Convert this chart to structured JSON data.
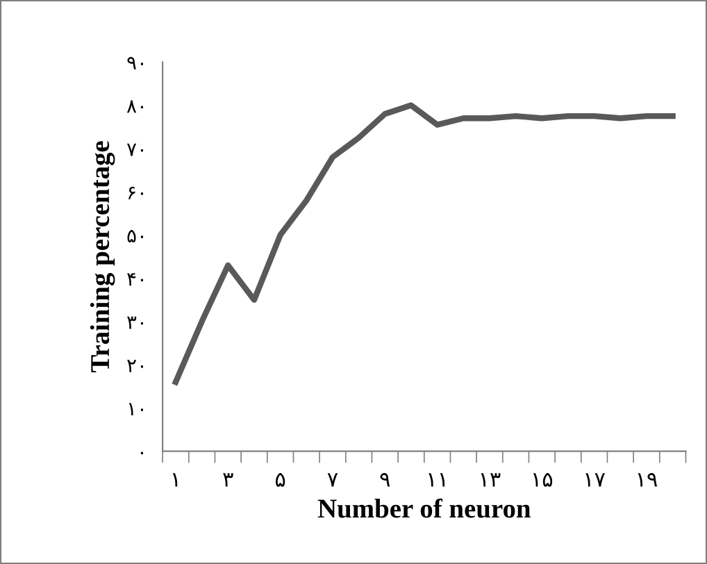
{
  "chart_data": {
    "type": "line",
    "xlabel": "Number of neuron",
    "ylabel": "Training percentage",
    "categories": [
      "۱",
      null,
      "۳",
      null,
      "۵",
      null,
      "۷",
      null,
      "۹",
      null,
      "۱۱",
      null,
      "۱۳",
      null,
      "۱۵",
      null,
      "۱۷",
      null,
      "۱۹",
      null
    ],
    "series": [
      {
        "color": "#595959",
        "values": [
          16,
          30,
          43,
          35,
          50,
          58,
          68,
          72.5,
          78,
          80,
          75.5,
          77,
          77,
          77.5,
          77,
          77.5,
          77.5,
          77,
          77.5,
          77.5
        ]
      }
    ],
    "ylim": [
      0,
      90
    ],
    "yticks": [
      {
        "value": 0,
        "label": "۰"
      },
      {
        "value": 10,
        "label": "۱۰"
      },
      {
        "value": 20,
        "label": "۲۰"
      },
      {
        "value": 30,
        "label": "۳۰"
      },
      {
        "value": 40,
        "label": "۴۰"
      },
      {
        "value": 50,
        "label": "۵۰"
      },
      {
        "value": 60,
        "label": "۶۰"
      },
      {
        "value": 70,
        "label": "۷۰"
      },
      {
        "value": 80,
        "label": "۸۰"
      },
      {
        "value": 90,
        "label": "۹۰"
      }
    ],
    "marker": "none",
    "line_style": "solid"
  }
}
